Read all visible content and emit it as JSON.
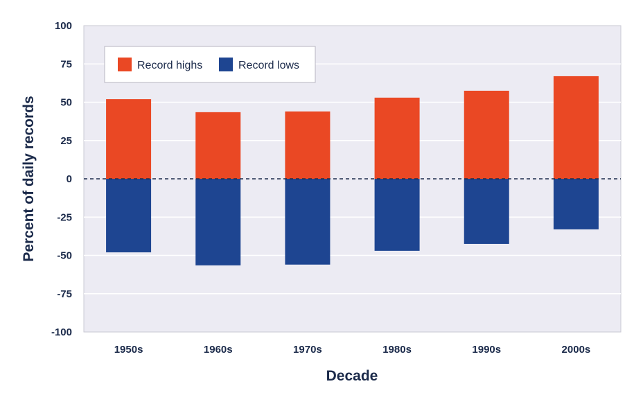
{
  "chart_data": {
    "type": "bar",
    "stacked": true,
    "categories": [
      "1950s",
      "1960s",
      "1970s",
      "1980s",
      "1990s",
      "2000s"
    ],
    "series": [
      {
        "name": "Record highs",
        "values": [
          52,
          43.5,
          44,
          53,
          57.5,
          67
        ],
        "color": "#ea4824"
      },
      {
        "name": "Record lows",
        "values": [
          -48,
          -56.5,
          -56,
          -47,
          -42.5,
          -33
        ],
        "color": "#1e4591"
      }
    ],
    "title": "",
    "xlabel": "Decade",
    "ylabel": "Percent of daily records",
    "ylim": [
      -100,
      100
    ],
    "yticks": [
      100,
      75,
      50,
      25,
      0,
      -25,
      -50,
      -75,
      -100
    ],
    "ytick_labels": [
      "100",
      "75",
      "50",
      "25",
      "0",
      "-25",
      "-50",
      "-75",
      "-100"
    ],
    "grid": true,
    "zero_line": "dashed",
    "legend_position": "top-left",
    "plot_background": "#ecebf3",
    "grid_color": "#ffffff",
    "text_color": "#1b2a4a"
  }
}
